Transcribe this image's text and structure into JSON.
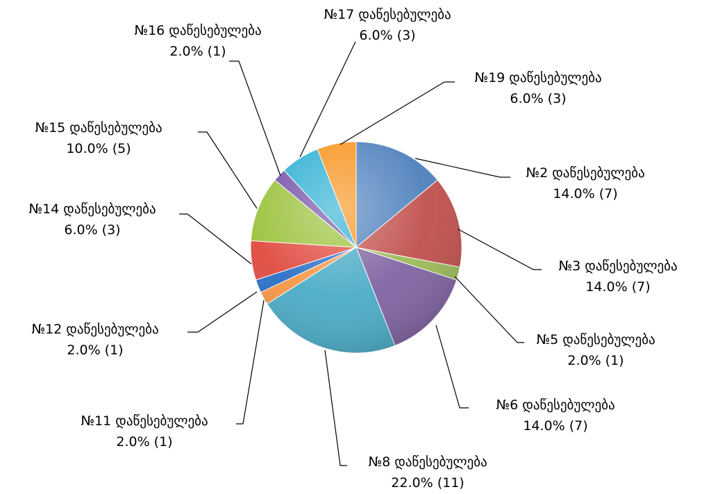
{
  "chart_data": {
    "type": "pie",
    "title": "",
    "slices": [
      {
        "name": "№2 დაწესებულება",
        "value": 7,
        "percent_label": "14.0% (7)",
        "color": "#4F81BD"
      },
      {
        "name": "№3 დაწესებულება",
        "value": 7,
        "percent_label": "14.0% (7)",
        "color": "#C0504D"
      },
      {
        "name": "№5 დაწესებულება",
        "value": 1,
        "percent_label": "2.0% (1)",
        "color": "#9BBB59"
      },
      {
        "name": "№6 დაწესებულება",
        "value": 7,
        "percent_label": "14.0% (7)",
        "color": "#8064A2"
      },
      {
        "name": "№8 დაწესებულება",
        "value": 11,
        "percent_label": "22.0% (11)",
        "color": "#4BACC6"
      },
      {
        "name": "№11 დაწესებულება",
        "value": 1,
        "percent_label": "2.0% (1)",
        "color": "#F79646"
      },
      {
        "name": "№12 დაწესებულება",
        "value": 1,
        "percent_label": "2.0% (1)",
        "color": "#2C6FC7"
      },
      {
        "name": "№14 დაწესებულება",
        "value": 3,
        "percent_label": "6.0% (3)",
        "color": "#E04A3F"
      },
      {
        "name": "№15 დაწესებულება",
        "value": 5,
        "percent_label": "10.0% (5)",
        "color": "#9BC23C"
      },
      {
        "name": "№16 დაწესებულება",
        "value": 1,
        "percent_label": "2.0% (1)",
        "color": "#7452A8"
      },
      {
        "name": "№17 დაწესებულება",
        "value": 3,
        "percent_label": "6.0% (3)",
        "color": "#2FB0D3"
      },
      {
        "name": "№19 დაწესებულება",
        "value": 3,
        "percent_label": "6.0% (3)",
        "color": "#F7941D"
      }
    ]
  }
}
